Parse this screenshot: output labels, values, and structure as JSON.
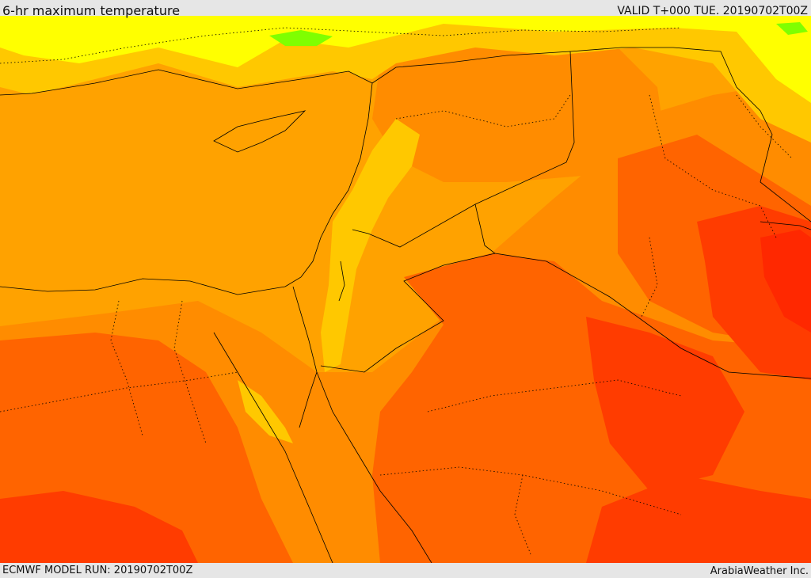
{
  "header": {
    "title": "6-hr maximum temperature",
    "valid_time": "VALID T+000 TUE. 20190702T00Z"
  },
  "footer": {
    "model_run": "ECMWF MODEL RUN: 20190702T00Z",
    "credit": "ArabiaWeather Inc."
  },
  "colors": {
    "sea_orange": "#ffa200",
    "light_orange": "#ff8c00",
    "orange_red": "#ff6400",
    "red": "#ff3c00",
    "deep_red": "#ff2800",
    "yellow_orange": "#ffc800",
    "yellow": "#ffff00",
    "green": "#7fff00"
  }
}
